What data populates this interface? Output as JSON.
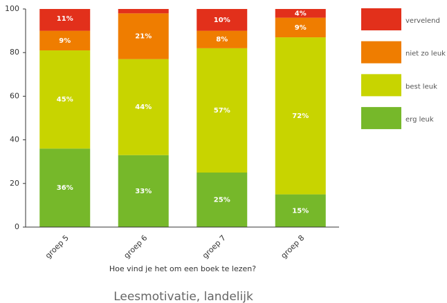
{
  "chart_data": {
    "type": "stacked_bar",
    "title": "Leesmotivatie, landelijk",
    "x_label": "Hoe vind je het om een boek te lezen?",
    "categories": [
      "groep 5",
      "groep 6",
      "groep 7",
      "groep 8"
    ],
    "series": [
      {
        "name": "erg leuk",
        "color": "#76b82a",
        "values": [
          36,
          33,
          25,
          15
        ],
        "value_labels": [
          "36%",
          "33%",
          "25%",
          "15%"
        ]
      },
      {
        "name": "best leuk",
        "color": "#c8d400",
        "values": [
          45,
          44,
          57,
          72
        ],
        "value_labels": [
          "45%",
          "44%",
          "57%",
          "72%"
        ]
      },
      {
        "name": "niet zo leuk",
        "color": "#ef7d00",
        "values": [
          9,
          21,
          8,
          9
        ],
        "value_labels": [
          "9%",
          "21%",
          "8%",
          "9%"
        ]
      },
      {
        "name": "vervelend",
        "color": "#e2301b",
        "values": [
          11,
          2,
          10,
          4
        ],
        "value_labels": [
          "11%",
          null,
          "10%",
          "4%"
        ]
      }
    ],
    "ylim": [
      0,
      100
    ],
    "yticks": [
      0,
      20,
      40,
      60,
      80,
      100
    ],
    "grid": false,
    "legend": "right"
  }
}
